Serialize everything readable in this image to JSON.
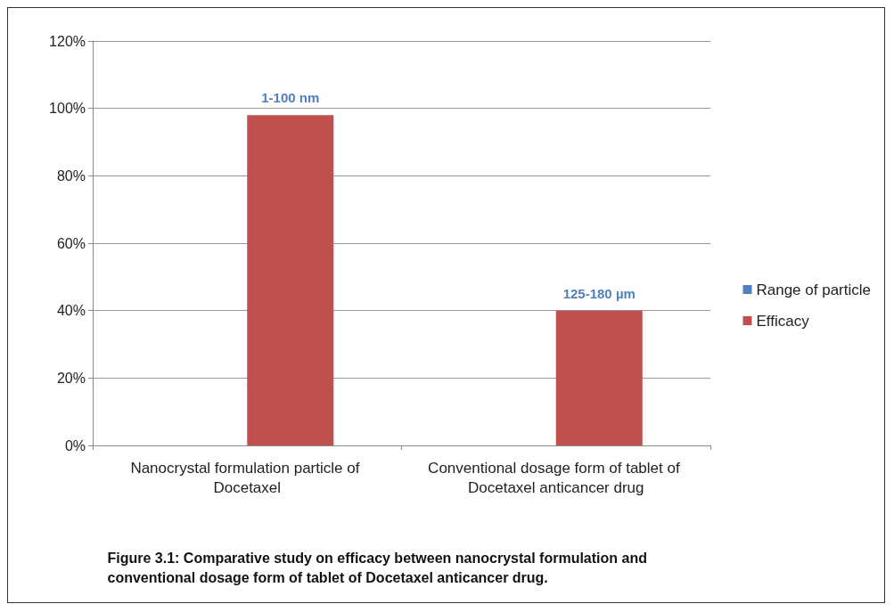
{
  "chart_data": {
    "type": "bar",
    "categories": [
      "Nanocrystal formulation particle of Docetaxel",
      "Conventional dosage form of tablet of Docetaxel anticancer drug"
    ],
    "series": [
      {
        "name": "Range of particle",
        "color": "#4f81bd",
        "values": [
          null,
          null
        ]
      },
      {
        "name": "Efficacy",
        "color": "#c0504d",
        "values": [
          98,
          40
        ]
      }
    ],
    "ylim": [
      0,
      120
    ],
    "yticks": [
      {
        "value": 0,
        "label": "0%"
      },
      {
        "value": 20,
        "label": "20%"
      },
      {
        "value": 40,
        "label": "40%"
      },
      {
        "value": 60,
        "label": "60%"
      },
      {
        "value": 80,
        "label": "80%"
      },
      {
        "value": 100,
        "label": "100%"
      },
      {
        "value": 120,
        "label": "120%"
      }
    ],
    "grid": "y",
    "legend": "right",
    "annotations": [
      {
        "text": "1-100 nm",
        "x": "Nanocrystal formulation particle of Docetaxel",
        "y": 98
      },
      {
        "text": "125-180 µm",
        "x": "Conventional dosage form of tablet of Docetaxel anticancer drug",
        "y": 40
      },
      "Figure 3.1: Comparative study on efficacy between nanocrystal formulation and conventional dosage form of tablet of Docetaxel anticancer drug."
    ]
  }
}
